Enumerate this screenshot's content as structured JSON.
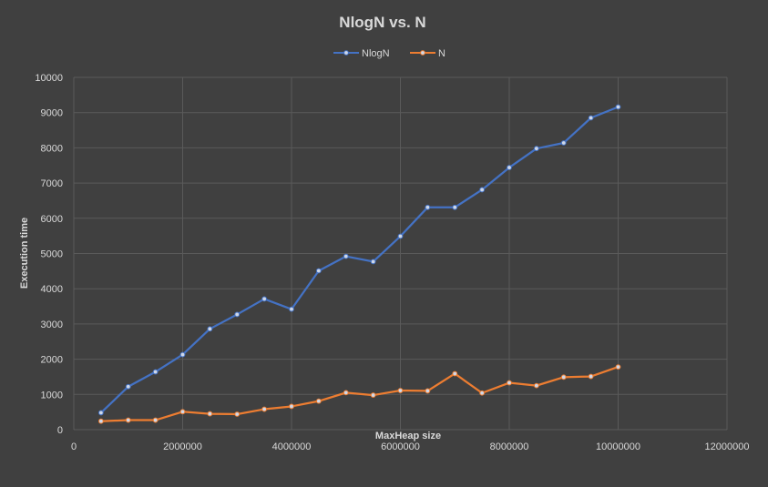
{
  "chart_data": {
    "type": "line",
    "title": "NlogN vs. N",
    "xlabel": "MaxHeap size",
    "ylabel": "Execution time",
    "xlim": [
      0,
      12000000
    ],
    "ylim": [
      0,
      10000
    ],
    "x_ticks": [
      0,
      2000000,
      4000000,
      6000000,
      8000000,
      10000000,
      12000000
    ],
    "y_ticks": [
      0,
      1000,
      2000,
      3000,
      4000,
      5000,
      6000,
      7000,
      8000,
      9000,
      10000
    ],
    "grid": true,
    "legend_position": "top",
    "x": [
      500000,
      1000000,
      1500000,
      2000000,
      2500000,
      3000000,
      3500000,
      4000000,
      4500000,
      5000000,
      5500000,
      6000000,
      6500000,
      7000000,
      7500000,
      8000000,
      8500000,
      9000000,
      9500000,
      10000000
    ],
    "series": [
      {
        "name": "NlogN",
        "color": "#4472c4",
        "values": [
          480,
          1220,
          1640,
          2130,
          2860,
          3270,
          3710,
          3420,
          4510,
          4920,
          4770,
          5490,
          6310,
          6310,
          6810,
          7440,
          7980,
          8140,
          8850,
          9160
        ]
      },
      {
        "name": "N",
        "color": "#ed7d31",
        "values": [
          240,
          270,
          270,
          510,
          450,
          440,
          580,
          660,
          810,
          1050,
          980,
          1110,
          1100,
          1590,
          1040,
          1330,
          1250,
          1490,
          1510,
          1780
        ]
      }
    ]
  }
}
